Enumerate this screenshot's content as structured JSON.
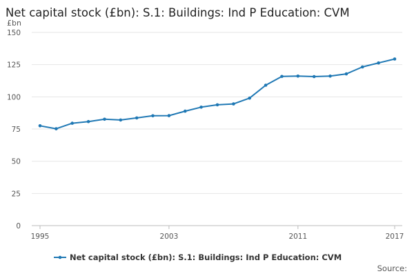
{
  "chart_data": {
    "type": "line",
    "title": "Net capital stock (£bn): S.1: Buildings: Ind P Education: CVM",
    "ylabel": "£bn",
    "xlabel": "",
    "ylim": [
      0,
      150
    ],
    "yticks": [
      0,
      25,
      50,
      75,
      100,
      125,
      150
    ],
    "xticks": [
      1995,
      2003,
      2011,
      2017
    ],
    "grid": true,
    "legend": "bottom",
    "series": [
      {
        "name": "Net capital stock (£bn): S.1: Buildings: Ind P Education: CVM",
        "color": "#1f78b4",
        "x": [
          1995,
          1996,
          1997,
          1998,
          1999,
          2000,
          2001,
          2002,
          2003,
          2004,
          2005,
          2006,
          2007,
          2008,
          2009,
          2010,
          2011,
          2012,
          2013,
          2014,
          2015,
          2016,
          2017
        ],
        "values": [
          77.5,
          75.2,
          79.5,
          80.8,
          82.6,
          82.0,
          83.6,
          85.3,
          85.4,
          88.9,
          92.0,
          93.8,
          94.5,
          99.0,
          109.0,
          115.8,
          116.1,
          115.7,
          116.1,
          117.8,
          123.2,
          126.3,
          129.4
        ]
      }
    ]
  },
  "source_label": "Source:"
}
